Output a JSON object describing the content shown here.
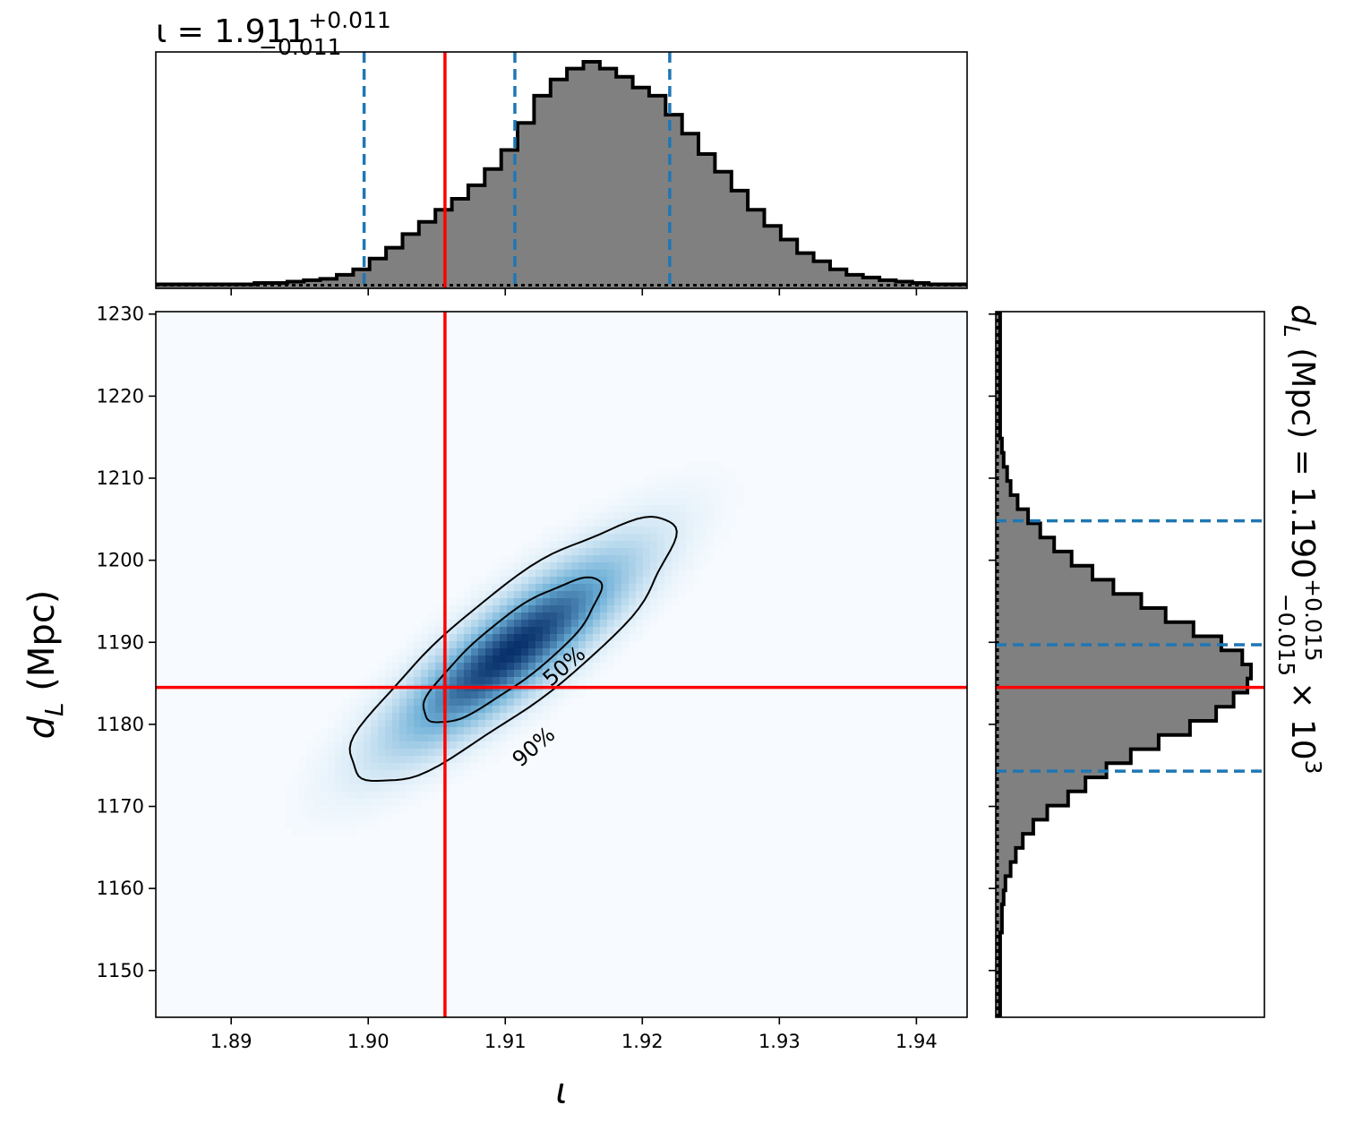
{
  "chart_data": {
    "type": "corner",
    "parameters": [
      "ι",
      "d_L"
    ],
    "x_axis": {
      "label": "ι",
      "range": [
        1.8845,
        1.9437
      ],
      "ticks": [
        1.89,
        1.9,
        1.91,
        1.92,
        1.93,
        1.94
      ],
      "tick_labels": [
        "1.89",
        "1.90",
        "1.91",
        "1.92",
        "1.93",
        "1.94"
      ]
    },
    "y_axis": {
      "label": "d_L (Mpc)",
      "label_math": {
        "base": "d",
        "sub": "L",
        "rest": " (Mpc)"
      },
      "range": [
        1144.3,
        1230.3
      ],
      "ticks": [
        1150,
        1160,
        1170,
        1180,
        1190,
        1200,
        1210,
        1220,
        1230
      ],
      "tick_labels": [
        "1150",
        "1160",
        "1170",
        "1180",
        "1190",
        "1200",
        "1210",
        "1220",
        "1230"
      ]
    },
    "top_title": {
      "prefix": "ι = 1.911",
      "sup": "+0.011",
      "sub": "−0.011"
    },
    "right_title": {
      "prefix": " (Mpc) = 1.190",
      "sym": "d",
      "sym_sub": "L",
      "sup": "+0.015",
      "sub": "−0.015",
      "suffix": "× 10",
      "exp": "3"
    },
    "true_value": {
      "iota": 1.9056,
      "dL": 1184.5,
      "color": "#ff0000"
    },
    "quantiles": {
      "iota": [
        1.8997,
        1.9107,
        1.922
      ],
      "dL": [
        1174.3,
        1189.7,
        1204.8
      ],
      "color": "#1f77b4"
    },
    "colormap": {
      "low": "#f7fbff",
      "high": "#08306b"
    },
    "density": {
      "mean": [
        1.9105,
        1189.0
      ],
      "sigma": [
        0.0055,
        7.5
      ],
      "correlation": 0.85
    },
    "contours": [
      {
        "label": "50%",
        "level": 0.5
      },
      {
        "label": "90%",
        "level": 0.9
      }
    ],
    "histogram_iota": {
      "bins_start": 1.8845,
      "bin_width": 0.0012,
      "counts": [
        1,
        1,
        1,
        1,
        1,
        1,
        2,
        2,
        3,
        4,
        5,
        8,
        12,
        20,
        28,
        38,
        47,
        56,
        64,
        74,
        86,
        100,
        120,
        140,
        152,
        160,
        165,
        160,
        154,
        146,
        140,
        126,
        112,
        97,
        84,
        70,
        56,
        44,
        34,
        24,
        18,
        12,
        8,
        6,
        4,
        3,
        2,
        1,
        1,
        1
      ]
    },
    "histogram_dL": {
      "bins_start": 1144.3,
      "bin_width": 1.72,
      "counts": [
        1,
        1,
        1,
        1,
        1,
        1,
        2,
        2,
        3,
        4,
        7,
        10,
        14,
        20,
        28,
        40,
        50,
        62,
        76,
        92,
        110,
        125,
        135,
        143,
        145,
        140,
        128,
        112,
        96,
        82,
        66,
        54,
        42,
        32,
        24,
        17,
        11,
        7,
        5,
        3,
        2,
        1,
        1,
        1,
        1,
        1,
        1,
        1,
        1,
        1
      ]
    }
  }
}
